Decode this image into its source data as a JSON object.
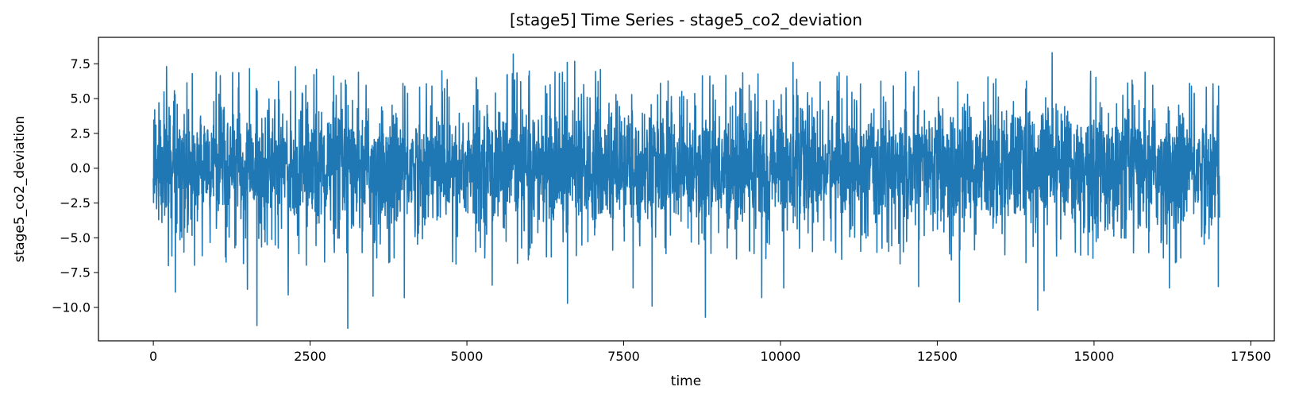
{
  "chart_data": {
    "type": "line",
    "title": "[stage5] Time Series - stage5_co2_deviation",
    "xlabel": "time",
    "ylabel": "stage5_co2_deviation",
    "xlim": [
      -875,
      17875
    ],
    "ylim": [
      -12.4,
      9.4
    ],
    "xticks": [
      0,
      2500,
      5000,
      7500,
      10000,
      12500,
      15000,
      17500
    ],
    "xtick_labels": [
      "0",
      "2500",
      "5000",
      "7500",
      "10000",
      "12500",
      "15000",
      "17500"
    ],
    "yticks": [
      7.5,
      5.0,
      2.5,
      0.0,
      -2.5,
      -5.0,
      -7.5,
      -10.0
    ],
    "ytick_labels": [
      "7.5",
      "5.0",
      "2.5",
      "0.0",
      "−2.5",
      "−5.0",
      "−7.5",
      "−10.0"
    ],
    "grid": false,
    "legend": "none",
    "series": [
      {
        "color": "#1f77b4",
        "x_range": [
          0,
          17000
        ],
        "n_points": 17000,
        "mean": 0.0,
        "typical_envelope": [
          -4.5,
          4.5
        ],
        "extremes": [
          {
            "x": 20,
            "y": 4.2
          },
          {
            "x": 210,
            "y": 7.3
          },
          {
            "x": 240,
            "y": -7.0
          },
          {
            "x": 350,
            "y": -8.9
          },
          {
            "x": 620,
            "y": 6.8
          },
          {
            "x": 1000,
            "y": 6.9
          },
          {
            "x": 1500,
            "y": -8.7
          },
          {
            "x": 1650,
            "y": -11.3
          },
          {
            "x": 2150,
            "y": -9.1
          },
          {
            "x": 2600,
            "y": 7.1
          },
          {
            "x": 3100,
            "y": -11.5
          },
          {
            "x": 3500,
            "y": -9.2
          },
          {
            "x": 4000,
            "y": -9.3
          },
          {
            "x": 4600,
            "y": 7.0
          },
          {
            "x": 5400,
            "y": -8.4
          },
          {
            "x": 6600,
            "y": 7.6
          },
          {
            "x": 6600,
            "y": -9.7
          },
          {
            "x": 7650,
            "y": -8.6
          },
          {
            "x": 7950,
            "y": -9.9
          },
          {
            "x": 8800,
            "y": -10.7
          },
          {
            "x": 9700,
            "y": -9.3
          },
          {
            "x": 10050,
            "y": -8.6
          },
          {
            "x": 10200,
            "y": 7.6
          },
          {
            "x": 12200,
            "y": -8.5
          },
          {
            "x": 12850,
            "y": -9.6
          },
          {
            "x": 14100,
            "y": -10.2
          },
          {
            "x": 14200,
            "y": -8.8
          },
          {
            "x": 14330,
            "y": 8.3
          },
          {
            "x": 16200,
            "y": -8.6
          },
          {
            "x": 16980,
            "y": -8.5
          }
        ]
      }
    ]
  }
}
